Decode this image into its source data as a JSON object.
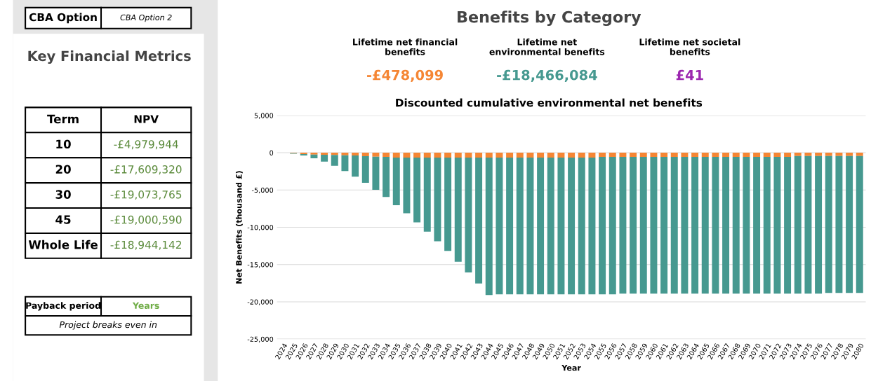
{
  "chart_data": [
    {
      "type": "other",
      "title": "Key Financial Metrics",
      "annotations": [
        "CBA Option",
        "CBA Option 2",
        "Term",
        "NPV",
        "10",
        "-£4,979,944",
        "20",
        "-£17,609,320",
        "30",
        "-£19,073,765",
        "45",
        "-£19,000,590",
        "Whole Life",
        "-£18,944,142",
        "Payback period",
        "Years",
        "Project breaks even in"
      ]
    },
    {
      "type": "bar",
      "title": "Benefits by Category",
      "subtitle": "Discounted cumulative environmental net benefits",
      "annotations": [
        "Lifetime net financial\nbenefits",
        "-£478,099",
        "Lifetime net\nenvironmental benefits",
        "-£18,466,084",
        "Lifetime net societal\nbenefits",
        "£41"
      ],
      "xlabel": "Year",
      "ylabel": "Net Benefits (thousand £)",
      "categories": [
        "2024",
        "2025",
        "2026",
        "2027",
        "2028",
        "2029",
        "2030",
        "2031",
        "2032",
        "2033",
        "2034",
        "2035",
        "2036",
        "2037",
        "2038",
        "2039",
        "2040",
        "2041",
        "2042",
        "2043",
        "2044",
        "2045",
        "2046",
        "2047",
        "2048",
        "2049",
        "2050",
        "2051",
        "2052",
        "2053",
        "2054",
        "2055",
        "2056",
        "2057",
        "2058",
        "2059",
        "2060",
        "2061",
        "2062",
        "2063",
        "2064",
        "2065",
        "2066",
        "2067",
        "2068",
        "2069",
        "2070",
        "2071",
        "2072",
        "2073",
        "2074",
        "2075",
        "2076",
        "2077",
        "2078",
        "2079",
        "2080"
      ],
      "stacked": true,
      "series": [
        {
          "color": "#f58634",
          "values": [
            0,
            -60,
            -190,
            -250,
            -280,
            -310,
            -340,
            -375,
            -470,
            -530,
            -560,
            -650,
            -650,
            -650,
            -650,
            -650,
            -650,
            -650,
            -650,
            -650,
            -650,
            -650,
            -650,
            -650,
            -650,
            -650,
            -650,
            -650,
            -650,
            -650,
            -650,
            -560,
            -560,
            -560,
            -560,
            -560,
            -560,
            -560,
            -560,
            -560,
            -560,
            -560,
            -560,
            -560,
            -560,
            -560,
            -560,
            -560,
            -560,
            -560,
            -440,
            -440,
            -440,
            -440,
            -440,
            -440,
            -440
          ]
        },
        {
          "color": "#469990",
          "values": [
            0,
            -65,
            -185,
            -500,
            -910,
            -1440,
            -2130,
            -2845,
            -3560,
            -4440,
            -5380,
            -6380,
            -7470,
            -8690,
            -9940,
            -11220,
            -12510,
            -13970,
            -15410,
            -16880,
            -18440,
            -18350,
            -18350,
            -18350,
            -18350,
            -18350,
            -18350,
            -18350,
            -18350,
            -18350,
            -18350,
            -18440,
            -18440,
            -18350,
            -18350,
            -18350,
            -18350,
            -18350,
            -18350,
            -18350,
            -18350,
            -18350,
            -18350,
            -18350,
            -18350,
            -18350,
            -18350,
            -18350,
            -18350,
            -18350,
            -18470,
            -18470,
            -18470,
            -18370,
            -18370,
            -18370,
            -18370
          ]
        }
      ],
      "ylim": [
        -25000,
        5000
      ],
      "yticks": [
        {
          "value": -25000,
          "label": "-25,000"
        },
        {
          "value": -20000,
          "label": "-20,000"
        },
        {
          "value": -15000,
          "label": "-15,000"
        },
        {
          "value": -10000,
          "label": "-10,000"
        },
        {
          "value": -5000,
          "label": "-5,000"
        },
        0,
        {
          "value": 5000,
          "label": "5,000"
        }
      ],
      "grid": "y",
      "legend": false
    }
  ]
}
